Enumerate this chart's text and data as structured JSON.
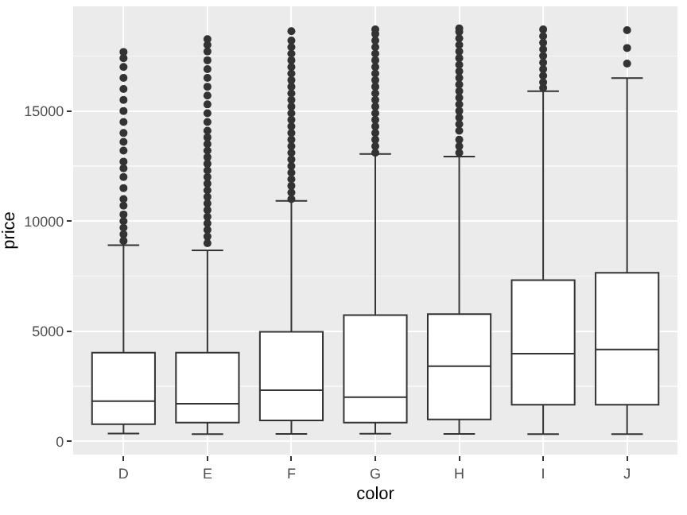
{
  "chart_data": {
    "type": "box",
    "xlabel": "color",
    "ylabel": "price",
    "categories": [
      "D",
      "E",
      "F",
      "G",
      "H",
      "I",
      "J"
    ],
    "boxes": [
      {
        "low": 360,
        "q1": 780,
        "median": 1825,
        "q3": 4030,
        "high": 8910,
        "outliers": [
          9100,
          9400,
          9700,
          10000,
          10300,
          10700,
          11000,
          11500,
          12000,
          12400,
          12700,
          13200,
          13600,
          14000,
          14500,
          15000,
          15500,
          16000,
          16500,
          17000,
          17400,
          17680
        ]
      },
      {
        "low": 330,
        "q1": 850,
        "median": 1710,
        "q3": 4030,
        "high": 8670,
        "outliers": [
          9000,
          9300,
          9600,
          9900,
          10200,
          10500,
          10800,
          11100,
          11400,
          11700,
          12000,
          12300,
          12600,
          12900,
          13200,
          13500,
          13800,
          14100,
          14500,
          14900,
          15300,
          15700,
          16100,
          16500,
          16900,
          17300,
          17700,
          18000,
          18260
        ]
      },
      {
        "low": 340,
        "q1": 950,
        "median": 2320,
        "q3": 4975,
        "high": 10920,
        "outliers": [
          11000,
          11300,
          11600,
          11900,
          12200,
          12500,
          12800,
          13100,
          13400,
          13700,
          14000,
          14300,
          14600,
          14900,
          15200,
          15500,
          15800,
          16100,
          16400,
          16700,
          17000,
          17300,
          17600,
          17900,
          18200,
          18620
        ]
      },
      {
        "low": 350,
        "q1": 850,
        "median": 2010,
        "q3": 5735,
        "high": 13050,
        "outliers": [
          13100,
          13400,
          13700,
          14000,
          14300,
          14600,
          14900,
          15200,
          15500,
          15800,
          16100,
          16400,
          16700,
          17000,
          17300,
          17600,
          17900,
          18200,
          18500,
          18700
        ]
      },
      {
        "low": 340,
        "q1": 995,
        "median": 3410,
        "q3": 5780,
        "high": 12935,
        "outliers": [
          13100,
          13400,
          13700,
          14100,
          14400,
          14700,
          15000,
          15300,
          15600,
          15900,
          16200,
          16500,
          16800,
          17100,
          17400,
          17700,
          18000,
          18300,
          18600,
          18750
        ]
      },
      {
        "low": 330,
        "q1": 1660,
        "median": 3980,
        "q3": 7320,
        "high": 15900,
        "outliers": [
          16050,
          16300,
          16600,
          16900,
          17200,
          17500,
          17800,
          18100,
          18400,
          18700
        ]
      },
      {
        "low": 330,
        "q1": 1660,
        "median": 4170,
        "q3": 7650,
        "high": 16490,
        "outliers": [
          17150,
          17860,
          18670
        ]
      }
    ],
    "color": "#333333",
    "ylim": [
      -600,
      19750
    ],
    "yticks": [
      0,
      5000,
      10000,
      15000
    ],
    "grid": true,
    "legend": false
  }
}
